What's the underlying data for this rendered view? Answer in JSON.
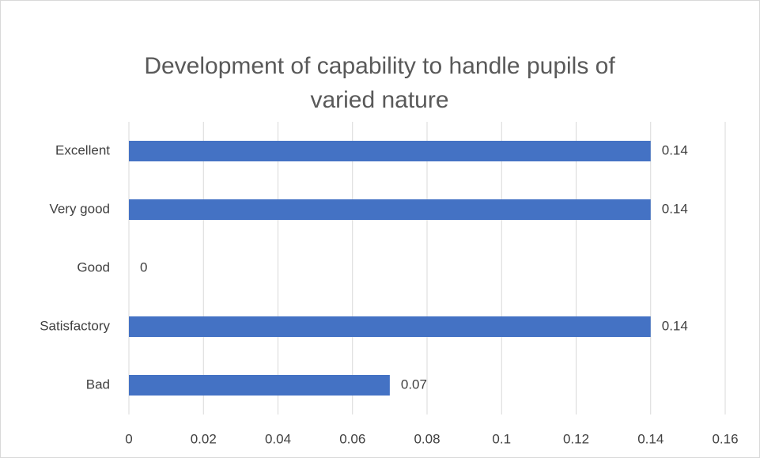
{
  "chart_data": {
    "type": "bar",
    "orientation": "horizontal",
    "title": "Development of capability to handle pupils of varied nature",
    "categories": [
      "Excellent",
      "Very good",
      "Good",
      "Satisfactory",
      "Bad"
    ],
    "values": [
      0.14,
      0.14,
      0,
      0.14,
      0.07
    ],
    "color": "#4472c4",
    "xlim": [
      0,
      0.16
    ],
    "xticks": [
      0,
      0.02,
      0.04,
      0.06,
      0.08,
      0.1,
      0.12,
      0.14,
      0.16
    ],
    "grid": true
  }
}
